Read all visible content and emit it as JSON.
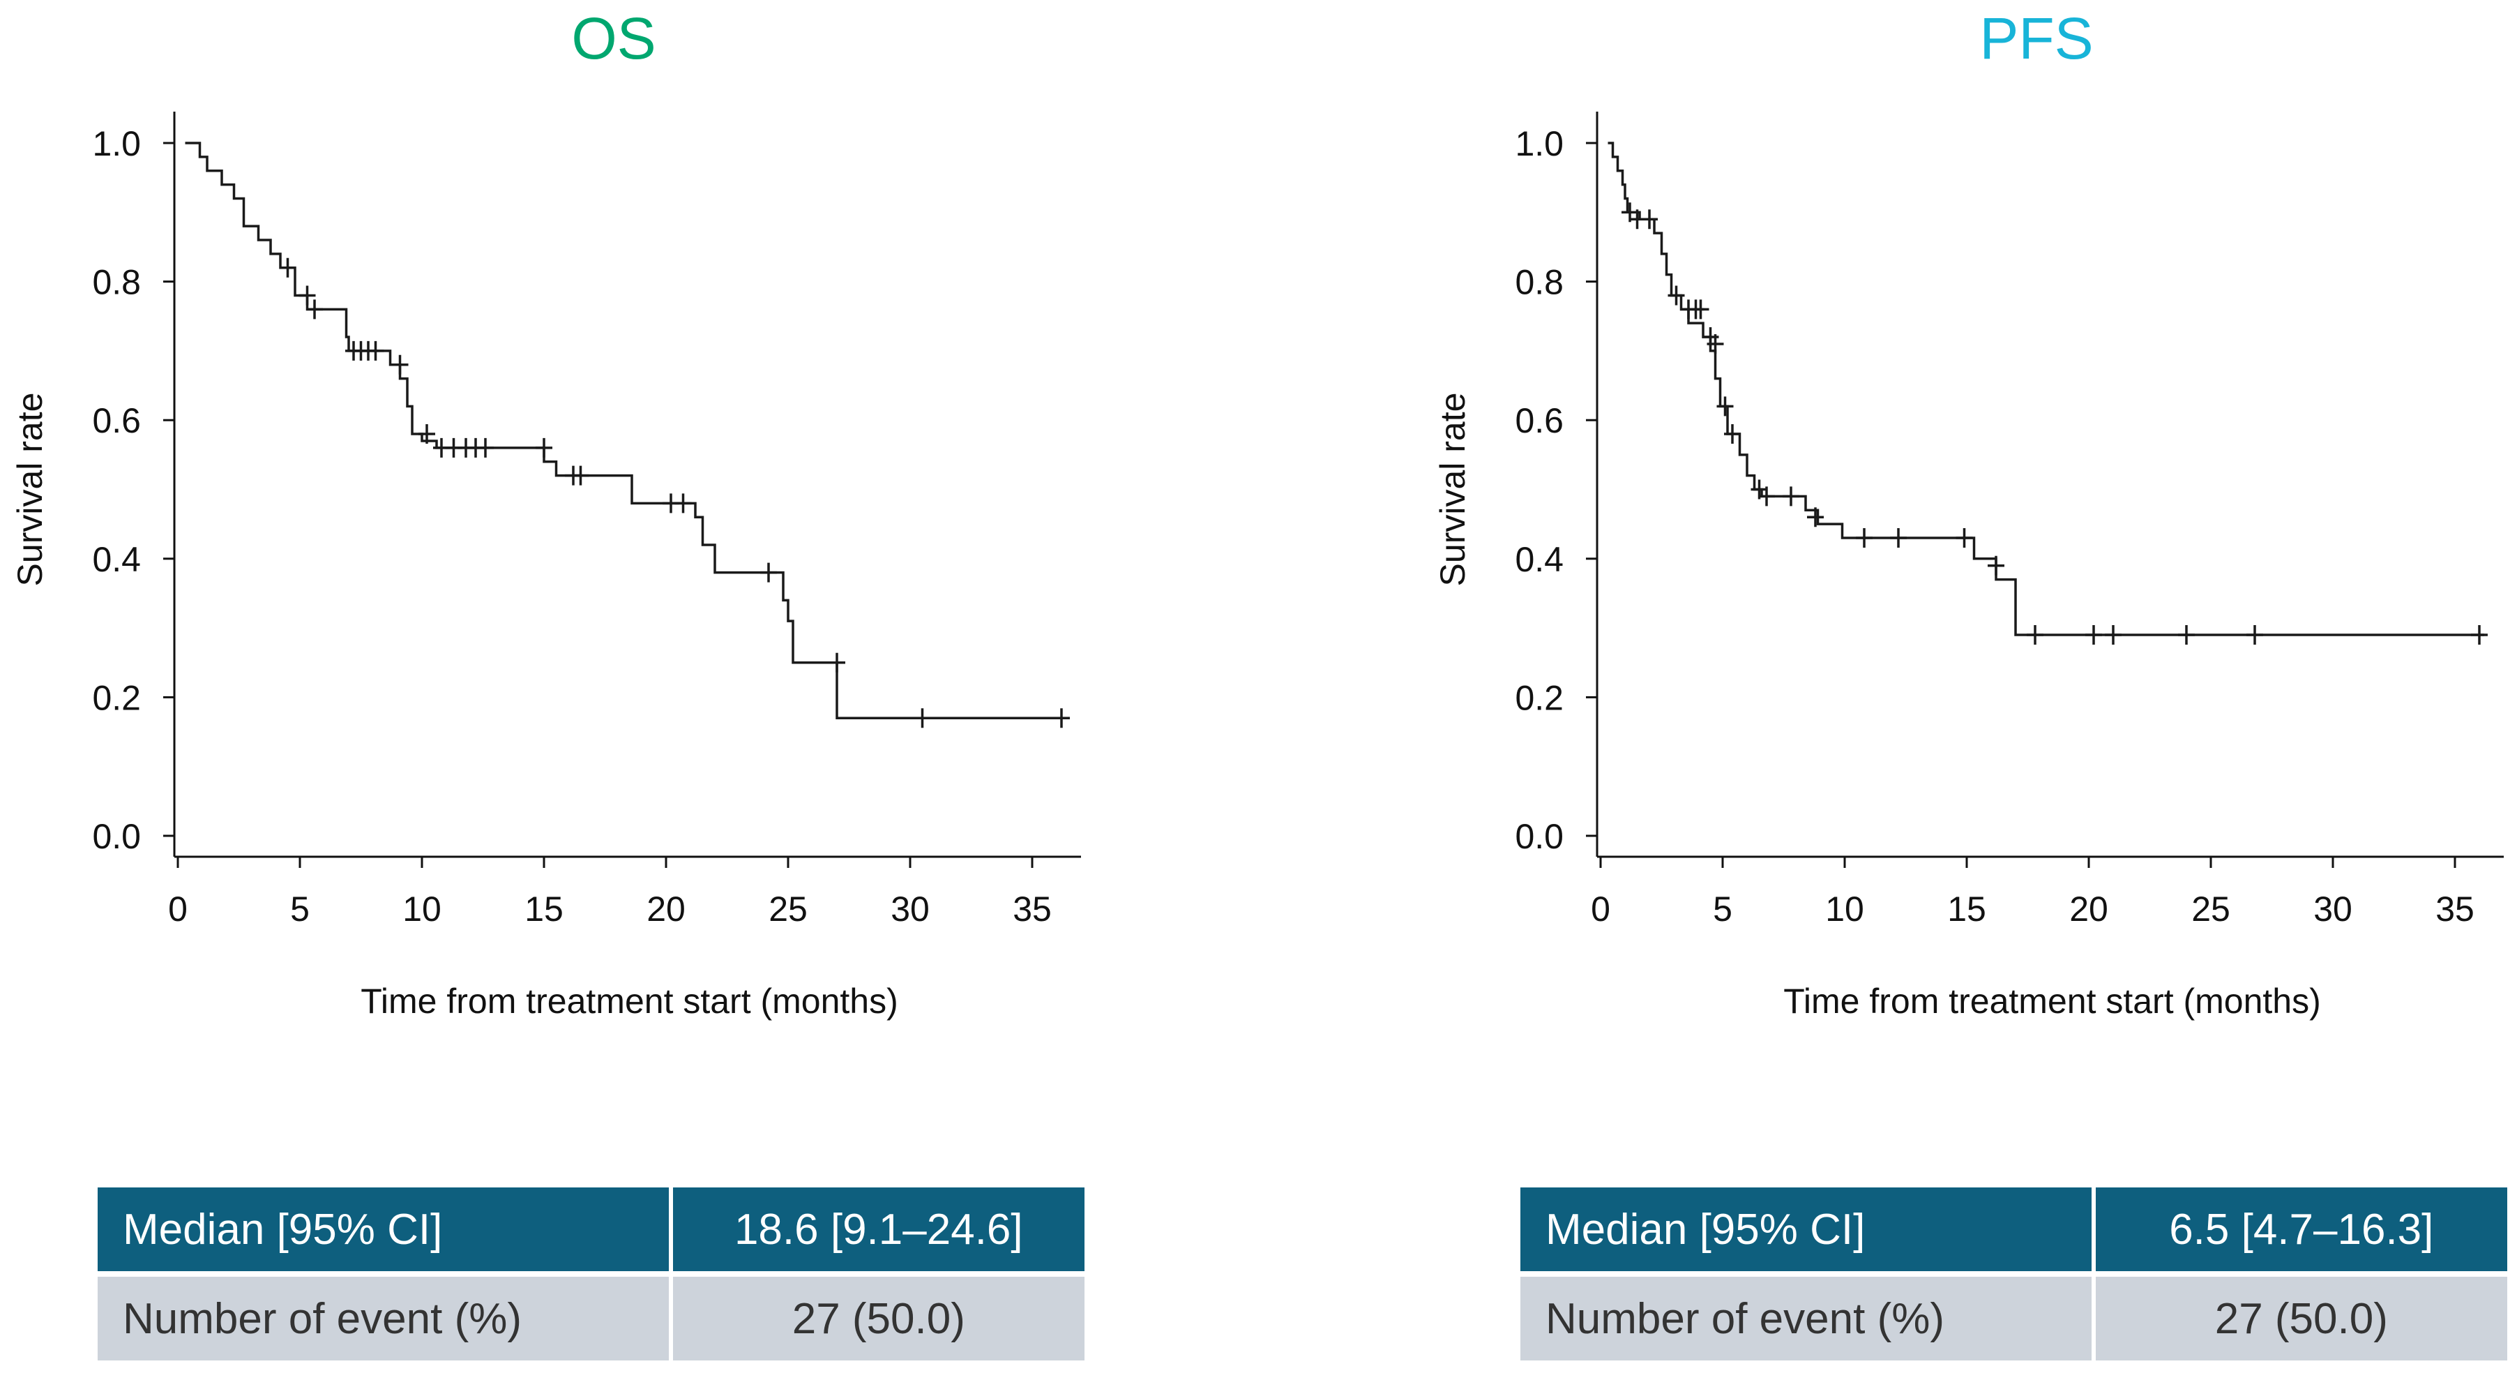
{
  "colors": {
    "os_title": "#00a76f",
    "pfs_title": "#18b4d8",
    "table_header": "#0e5f7e",
    "table_row": "#cdd3db",
    "curve": "#1a1a1a"
  },
  "chart_data": [
    {
      "type": "line",
      "subtype": "kaplan-meier",
      "title": "OS",
      "xlabel": "Time from treatment start  (months)",
      "ylabel": "Survival rate",
      "xlim": [
        0,
        37
      ],
      "ylim": [
        0,
        1.0
      ],
      "x_ticks": [
        0,
        5,
        10,
        15,
        20,
        25,
        30,
        35
      ],
      "x_tick_labels": [
        "0",
        "5",
        "10",
        "15",
        "20",
        "25",
        "30",
        "35"
      ],
      "y_ticks": [
        0,
        0.2,
        0.4,
        0.6,
        0.8,
        1.0
      ],
      "y_tick_labels": [
        "0.0",
        "0.2",
        "0.4",
        "0.6",
        "0.8",
        "1.0"
      ],
      "steps": [
        [
          0.3,
          1.0
        ],
        [
          0.9,
          0.98
        ],
        [
          1.2,
          0.96
        ],
        [
          1.8,
          0.94
        ],
        [
          2.3,
          0.92
        ],
        [
          2.7,
          0.88
        ],
        [
          3.3,
          0.86
        ],
        [
          3.8,
          0.84
        ],
        [
          4.2,
          0.82
        ],
        [
          4.8,
          0.78
        ],
        [
          5.3,
          0.76
        ],
        [
          6.9,
          0.72
        ],
        [
          7.0,
          0.7
        ],
        [
          8.7,
          0.68
        ],
        [
          9.1,
          0.66
        ],
        [
          9.4,
          0.62
        ],
        [
          9.6,
          0.58
        ],
        [
          10.0,
          0.57
        ],
        [
          10.6,
          0.56
        ],
        [
          15.0,
          0.54
        ],
        [
          15.5,
          0.52
        ],
        [
          18.6,
          0.48
        ],
        [
          21.2,
          0.46
        ],
        [
          21.5,
          0.42
        ],
        [
          22.0,
          0.38
        ],
        [
          24.8,
          0.34
        ],
        [
          25.0,
          0.31
        ],
        [
          25.2,
          0.25
        ],
        [
          27.0,
          0.17
        ]
      ],
      "end_x": 36.5,
      "censors": [
        [
          4.5,
          0.82
        ],
        [
          5.3,
          0.78
        ],
        [
          5.6,
          0.76
        ],
        [
          7.2,
          0.7
        ],
        [
          7.5,
          0.7
        ],
        [
          7.8,
          0.7
        ],
        [
          8.1,
          0.7
        ],
        [
          9.1,
          0.68
        ],
        [
          10.2,
          0.58
        ],
        [
          10.8,
          0.56
        ],
        [
          11.3,
          0.56
        ],
        [
          11.8,
          0.56
        ],
        [
          12.2,
          0.56
        ],
        [
          12.6,
          0.56
        ],
        [
          15.0,
          0.56
        ],
        [
          16.2,
          0.52
        ],
        [
          16.5,
          0.52
        ],
        [
          20.2,
          0.48
        ],
        [
          20.7,
          0.48
        ],
        [
          24.2,
          0.38
        ],
        [
          27.0,
          0.25
        ],
        [
          30.5,
          0.17
        ],
        [
          36.2,
          0.17
        ]
      ]
    },
    {
      "type": "line",
      "subtype": "kaplan-meier",
      "title": "PFS",
      "xlabel": "Time from treatment start  (months)",
      "ylabel": "Survival rate",
      "xlim": [
        0,
        37
      ],
      "ylim": [
        0,
        1.0
      ],
      "x_ticks": [
        0,
        5,
        10,
        15,
        20,
        25,
        30,
        35
      ],
      "x_tick_labels": [
        "0",
        "5",
        "10",
        "15",
        "20",
        "25",
        "30",
        "35"
      ],
      "y_ticks": [
        0,
        0.2,
        0.4,
        0.6,
        0.8,
        1.0
      ],
      "y_tick_labels": [
        "0.0",
        "0.2",
        "0.4",
        "0.6",
        "0.8",
        "1.0"
      ],
      "steps": [
        [
          0.3,
          1.0
        ],
        [
          0.5,
          0.98
        ],
        [
          0.7,
          0.96
        ],
        [
          0.9,
          0.94
        ],
        [
          1.0,
          0.92
        ],
        [
          1.1,
          0.9
        ],
        [
          1.6,
          0.89
        ],
        [
          2.2,
          0.87
        ],
        [
          2.5,
          0.84
        ],
        [
          2.7,
          0.81
        ],
        [
          2.9,
          0.78
        ],
        [
          3.3,
          0.76
        ],
        [
          3.6,
          0.74
        ],
        [
          4.2,
          0.72
        ],
        [
          4.5,
          0.7
        ],
        [
          4.7,
          0.66
        ],
        [
          4.9,
          0.62
        ],
        [
          5.2,
          0.58
        ],
        [
          5.7,
          0.55
        ],
        [
          6.0,
          0.52
        ],
        [
          6.3,
          0.5
        ],
        [
          6.6,
          0.49
        ],
        [
          8.4,
          0.47
        ],
        [
          8.9,
          0.45
        ],
        [
          9.9,
          0.43
        ],
        [
          15.3,
          0.4
        ],
        [
          16.2,
          0.37
        ],
        [
          17.0,
          0.29
        ]
      ],
      "end_x": 36.2,
      "censors": [
        [
          1.2,
          0.9
        ],
        [
          1.5,
          0.89
        ],
        [
          2.0,
          0.89
        ],
        [
          3.1,
          0.78
        ],
        [
          3.6,
          0.76
        ],
        [
          3.9,
          0.76
        ],
        [
          4.1,
          0.76
        ],
        [
          4.5,
          0.72
        ],
        [
          4.7,
          0.71
        ],
        [
          5.1,
          0.62
        ],
        [
          5.4,
          0.58
        ],
        [
          6.5,
          0.5
        ],
        [
          6.8,
          0.49
        ],
        [
          7.8,
          0.49
        ],
        [
          8.8,
          0.46
        ],
        [
          10.8,
          0.43
        ],
        [
          12.2,
          0.43
        ],
        [
          14.9,
          0.43
        ],
        [
          16.2,
          0.39
        ],
        [
          17.8,
          0.29
        ],
        [
          20.2,
          0.29
        ],
        [
          21.0,
          0.29
        ],
        [
          24.0,
          0.29
        ],
        [
          26.8,
          0.29
        ],
        [
          36.0,
          0.29
        ]
      ]
    }
  ],
  "tables": {
    "os": {
      "row1_label": "Median [95% CI]",
      "row1_value": "18.6 [9.1–24.6]",
      "row2_label": "Number of event (%)",
      "row2_value": "27 (50.0)"
    },
    "pfs": {
      "row1_label": "Median [95% CI]",
      "row1_value": "6.5 [4.7–16.3]",
      "row2_label": "Number of event (%)",
      "row2_value": "27 (50.0)"
    }
  }
}
